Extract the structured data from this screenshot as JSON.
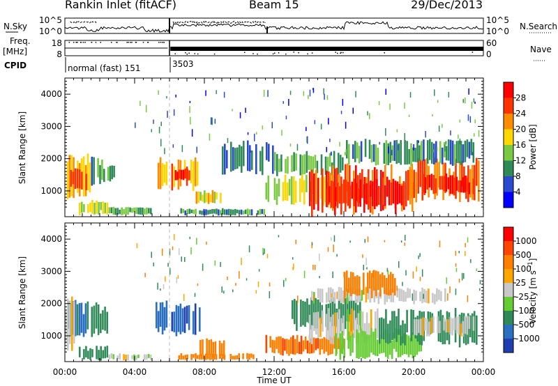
{
  "header": {
    "station": "Rankin Inlet (fitACF)",
    "beam": "Beam 15",
    "date": "29/Dec/2013"
  },
  "nsky_panel": {
    "left_label": "N.Sky",
    "right_label": "N.Search",
    "left_ticks": [
      "10^5",
      "10^0"
    ],
    "right_ticks": [
      "10^5",
      "10^0"
    ]
  },
  "freq_panel": {
    "left_label_line1": "Freq.",
    "left_label_line2": "[MHz]",
    "right_label": "Nave",
    "left_ticks": [
      "18",
      "8"
    ],
    "right_ticks": [
      "60",
      "0"
    ]
  },
  "cpid": {
    "label": "CPID",
    "programs": [
      {
        "name": "normal (fast) 151",
        "start_hour": 0.0
      },
      {
        "name": "3503",
        "start_hour": 6.0
      }
    ]
  },
  "x_axis": {
    "label": "Time UT",
    "ticks": [
      "00:00",
      "04:00",
      "08:00",
      "12:00",
      "16:00",
      "20:00",
      "00:00"
    ],
    "range_hours": [
      0,
      24
    ]
  },
  "chart_data": [
    {
      "type": "heatmap",
      "title": "",
      "quantity": "Power",
      "ylabel": "Slant Range [km]",
      "yticks": [
        "1000",
        "2000",
        "3000",
        "4000"
      ],
      "ylim": [
        200,
        4500
      ],
      "colorbar_label": "Power [dB]",
      "colorbar_ticks": [
        "4",
        "8",
        "12",
        "16",
        "20",
        "24",
        "28"
      ],
      "colorbar_colors": [
        "#0000ff",
        "#2a4bd0",
        "#2e8b57",
        "#7ac943",
        "#ffd700",
        "#ff8c00",
        "#ff3300",
        "#ff0000"
      ],
      "regions": [
        {
          "t0": 0.1,
          "t1": 1.5,
          "r0": 700,
          "r1": 2100,
          "level": 18
        },
        {
          "t0": 0.3,
          "t1": 1.3,
          "r0": 1000,
          "r1": 1700,
          "level": 26
        },
        {
          "t0": 1.5,
          "t1": 2.2,
          "r0": 1200,
          "r1": 2100,
          "level": 10
        },
        {
          "t0": 2.2,
          "t1": 3.0,
          "r0": 1300,
          "r1": 1800,
          "level": 12
        },
        {
          "t0": 0.8,
          "t1": 2.5,
          "r0": 250,
          "r1": 700,
          "level": 16
        },
        {
          "t0": 2.5,
          "t1": 5.0,
          "r0": 250,
          "r1": 500,
          "level": 12
        },
        {
          "t0": 5.2,
          "t1": 5.9,
          "r0": 1100,
          "r1": 2100,
          "level": 20
        },
        {
          "t0": 6.1,
          "t1": 7.8,
          "r0": 1000,
          "r1": 2000,
          "level": 22
        },
        {
          "t0": 6.3,
          "t1": 7.2,
          "r0": 1300,
          "r1": 1700,
          "level": 27
        },
        {
          "t0": 7.5,
          "t1": 9.0,
          "r0": 600,
          "r1": 1000,
          "level": 18
        },
        {
          "t0": 6.5,
          "t1": 11.5,
          "r0": 250,
          "r1": 450,
          "level": 10
        },
        {
          "t0": 9.0,
          "t1": 12.0,
          "r0": 1500,
          "r1": 2500,
          "level": 8
        },
        {
          "t0": 11.5,
          "t1": 15.5,
          "r0": 600,
          "r1": 1500,
          "level": 16
        },
        {
          "t0": 12.0,
          "t1": 16.0,
          "r0": 1500,
          "r1": 2200,
          "level": 12
        },
        {
          "t0": 14.0,
          "t1": 20.0,
          "r0": 300,
          "r1": 1800,
          "level": 26
        },
        {
          "t0": 15.0,
          "t1": 19.5,
          "r0": 500,
          "r1": 1400,
          "level": 29
        },
        {
          "t0": 19.5,
          "t1": 23.8,
          "r0": 700,
          "r1": 2000,
          "level": 24
        },
        {
          "t0": 20.5,
          "t1": 23.5,
          "r0": 900,
          "r1": 1500,
          "level": 28
        },
        {
          "t0": 16.0,
          "t1": 23.5,
          "r0": 1800,
          "r1": 2600,
          "level": 10
        }
      ]
    },
    {
      "type": "heatmap",
      "title": "",
      "quantity": "Velocity",
      "ylabel": "Slant Range [km]",
      "yticks": [
        "1000",
        "2000",
        "3000",
        "4000"
      ],
      "ylim": [
        200,
        4500
      ],
      "colorbar_label": "Velocity [m s^-1]",
      "colorbar_ticks": [
        "1000",
        "500",
        "100",
        "25",
        "-25",
        "-100",
        "-500",
        "-1000"
      ],
      "colorbar_colors": [
        "#1f3fb0",
        "#2a6fc0",
        "#2e8b57",
        "#66cc33",
        "#c8c8c8",
        "#ffa500",
        "#ff7f00",
        "#ff4500",
        "#ff0000"
      ],
      "regions": [
        {
          "t0": 0.2,
          "t1": 1.5,
          "r0": 900,
          "r1": 2100,
          "level": 500
        },
        {
          "t0": 0.0,
          "t1": 0.6,
          "r0": 600,
          "r1": 2300,
          "level": 0
        },
        {
          "t0": 1.5,
          "t1": 2.5,
          "r0": 1000,
          "r1": 2000,
          "level": 200
        },
        {
          "t0": 0.8,
          "t1": 2.5,
          "r0": 250,
          "r1": 700,
          "level": 200
        },
        {
          "t0": 2.5,
          "t1": 5.0,
          "r0": 250,
          "r1": 450,
          "level": 0
        },
        {
          "t0": 5.2,
          "t1": 5.9,
          "r0": 1100,
          "r1": 2100,
          "level": 500
        },
        {
          "t0": 6.1,
          "t1": 7.8,
          "r0": 1000,
          "r1": 2000,
          "level": 900
        },
        {
          "t0": 7.6,
          "t1": 9.2,
          "r0": 300,
          "r1": 900,
          "level": -300
        },
        {
          "t0": 6.5,
          "t1": 11.0,
          "r0": 250,
          "r1": 450,
          "level": -200
        },
        {
          "t0": 11.5,
          "t1": 16.0,
          "r0": 400,
          "r1": 1000,
          "level": -400
        },
        {
          "t0": 13.0,
          "t1": 17.0,
          "r0": 1200,
          "r1": 2200,
          "level": 300
        },
        {
          "t0": 14.0,
          "t1": 18.0,
          "r0": 800,
          "r1": 1800,
          "level": 0
        },
        {
          "t0": 15.5,
          "t1": 20.5,
          "r0": 300,
          "r1": 1200,
          "level": 60
        },
        {
          "t0": 18.0,
          "t1": 23.8,
          "r0": 700,
          "r1": 1800,
          "level": 300
        },
        {
          "t0": 20.0,
          "t1": 23.5,
          "r0": 1000,
          "r1": 1600,
          "level": 0
        },
        {
          "t0": 14.0,
          "t1": 22.0,
          "r0": 2000,
          "r1": 2500,
          "level": 0
        },
        {
          "t0": 16.0,
          "t1": 19.0,
          "r0": 2200,
          "r1": 3000,
          "level": -300
        }
      ]
    }
  ]
}
